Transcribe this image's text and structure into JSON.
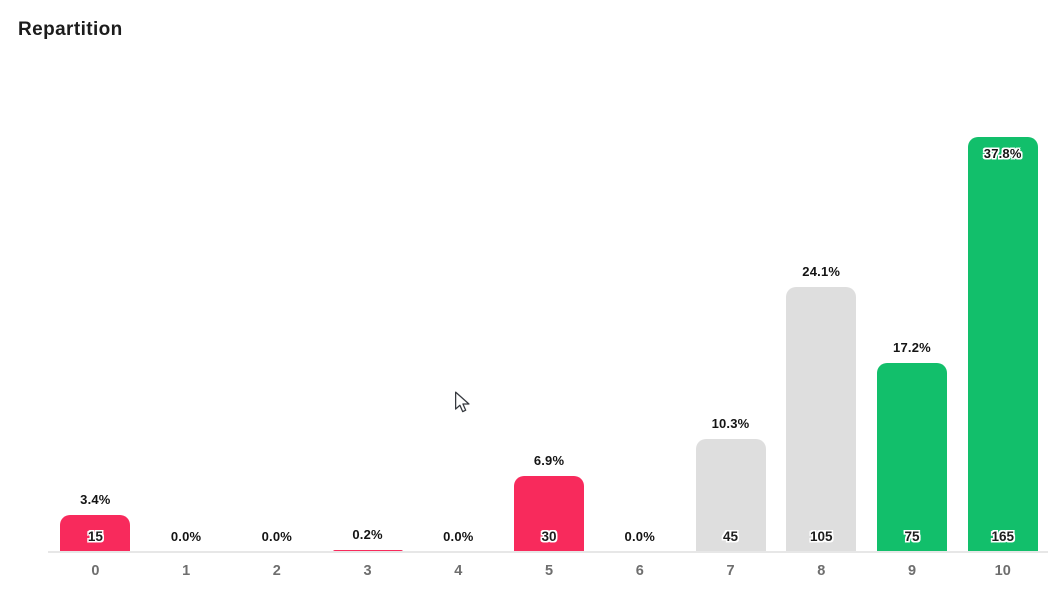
{
  "title": "Repartition",
  "icons": {
    "cursor": "arrow-pointer"
  },
  "colors": {
    "pink": "#f82a5c",
    "gray": "#dedede",
    "green": "#12bf6b",
    "axis_line": "#e7e7e7",
    "tick_text": "#6e6e6e",
    "label_text": "#141414",
    "background": "#ffffff"
  },
  "chart_data": {
    "type": "bar",
    "title": "Repartition",
    "categories": [
      "0",
      "1",
      "2",
      "3",
      "4",
      "5",
      "6",
      "7",
      "8",
      "9",
      "10"
    ],
    "percentages": [
      3.4,
      0.0,
      0.0,
      0.2,
      0.0,
      6.9,
      0.0,
      10.3,
      24.1,
      17.2,
      37.8
    ],
    "percent_labels": [
      "3.4%",
      "0.0%",
      "0.0%",
      "0.2%",
      "0.0%",
      "6.9%",
      "0.0%",
      "10.3%",
      "24.1%",
      "17.2%",
      "37.8%"
    ],
    "count_labels": [
      "15",
      "",
      "",
      "",
      "",
      "30",
      "",
      "45",
      "105",
      "75",
      "165"
    ],
    "bar_colors": [
      "#f82a5c",
      "",
      "",
      "#f82a5c",
      "",
      "#f82a5c",
      "",
      "#dedede",
      "#dedede",
      "#12bf6b",
      "#12bf6b"
    ],
    "xlabel": "",
    "ylabel": "",
    "ylim": [
      0,
      41
    ],
    "grid": false,
    "legend": false,
    "value_label_position": "inside-bottom",
    "percent_label_position": "above-bar (inside-top when bar reaches chart top)"
  }
}
